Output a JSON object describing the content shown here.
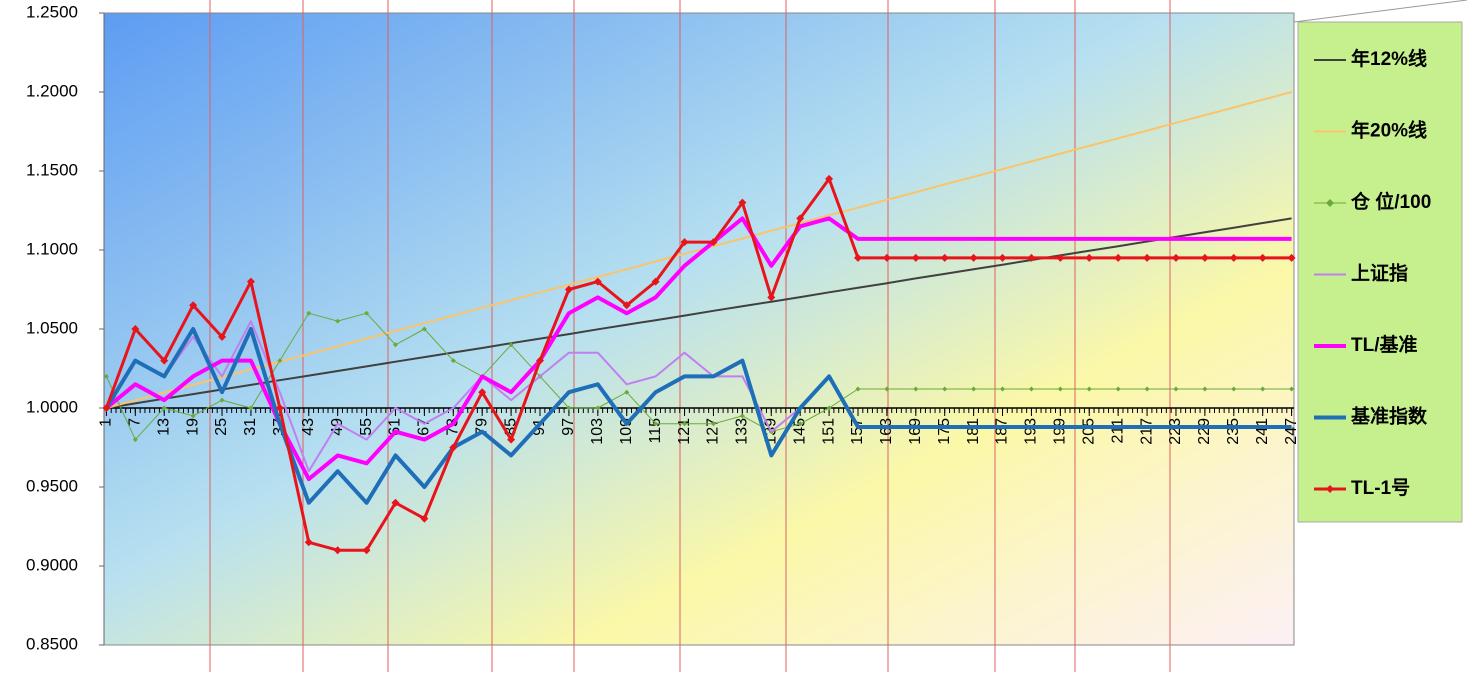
{
  "chart_data": {
    "type": "line",
    "x": [
      1,
      7,
      13,
      19,
      25,
      31,
      37,
      43,
      49,
      55,
      61,
      67,
      73,
      79,
      85,
      91,
      97,
      103,
      109,
      115,
      121,
      127,
      133,
      139,
      145,
      151,
      157,
      163,
      169,
      175,
      181,
      187,
      193,
      199,
      205,
      211,
      217,
      223,
      229,
      235,
      241,
      247
    ],
    "xlim": [
      1,
      247
    ],
    "xticks": [
      1,
      7,
      13,
      19,
      25,
      31,
      37,
      43,
      49,
      55,
      61,
      67,
      73,
      79,
      85,
      91,
      97,
      103,
      109,
      115,
      121,
      127,
      133,
      139,
      145,
      151,
      157,
      163,
      169,
      175,
      181,
      187,
      193,
      199,
      205,
      211,
      217,
      223,
      229,
      235,
      241,
      247
    ],
    "ylim": [
      0.85,
      1.25
    ],
    "yticks": [
      {
        "value": 0.85,
        "label": "0.8500"
      },
      {
        "value": 0.9,
        "label": "0.9000"
      },
      {
        "value": 0.95,
        "label": "0.9500"
      },
      {
        "value": 1.0,
        "label": "1.0000"
      },
      {
        "value": 1.05,
        "label": "1.0500"
      },
      {
        "value": 1.1,
        "label": "1.1000"
      },
      {
        "value": 1.15,
        "label": "1.1500"
      },
      {
        "value": 1.2,
        "label": "1.2000"
      },
      {
        "value": 1.25,
        "label": "1.2500"
      }
    ],
    "x_axis_at": 1.0,
    "grid": true,
    "legend": "right",
    "series": [
      {
        "name": "年12%线",
        "color": "#404040",
        "line_width": 2,
        "values": [
          1.0,
          1.0029,
          1.0059,
          1.0088,
          1.0117,
          1.0146,
          1.0176,
          1.0205,
          1.0234,
          1.0263,
          1.0293,
          1.0322,
          1.0351,
          1.038,
          1.041,
          1.0439,
          1.0468,
          1.0498,
          1.0527,
          1.0556,
          1.0585,
          1.0615,
          1.0644,
          1.0673,
          1.0702,
          1.0732,
          1.0761,
          1.079,
          1.082,
          1.0849,
          1.0878,
          1.0907,
          1.0937,
          1.0966,
          1.0995,
          1.1024,
          1.1054,
          1.1083,
          1.1112,
          1.1141,
          1.1171,
          1.12
        ]
      },
      {
        "name": "年20%线",
        "color": "#fac46a",
        "line_width": 2,
        "values": [
          1.0,
          1.0049,
          1.0098,
          1.0146,
          1.0195,
          1.0244,
          1.0293,
          1.0341,
          1.039,
          1.0439,
          1.0488,
          1.0537,
          1.0585,
          1.0634,
          1.0683,
          1.0732,
          1.078,
          1.0829,
          1.0878,
          1.0927,
          1.0976,
          1.1024,
          1.1073,
          1.1122,
          1.1171,
          1.122,
          1.1268,
          1.1317,
          1.1366,
          1.1415,
          1.1463,
          1.1512,
          1.1561,
          1.161,
          1.1659,
          1.1707,
          1.1756,
          1.1805,
          1.1854,
          1.1902,
          1.1951,
          1.2
        ]
      },
      {
        "name": "仓 位/100",
        "color": "#6aaa3a",
        "line_width": 1,
        "marker": "diamond",
        "values": [
          1.02,
          0.98,
          1.0,
          0.995,
          1.005,
          1.0,
          1.03,
          1.06,
          1.055,
          1.06,
          1.04,
          1.05,
          1.03,
          1.02,
          1.04,
          1.02,
          1.0,
          1.0,
          1.01,
          0.99,
          0.99,
          0.99,
          0.995,
          0.985,
          0.99,
          1.0,
          1.012,
          1.012,
          1.012,
          1.012,
          1.012,
          1.012,
          1.012,
          1.012,
          1.012,
          1.012,
          1.012,
          1.012,
          1.012,
          1.012,
          1.012,
          1.012
        ]
      },
      {
        "name": "上证指",
        "color": "#c080f0",
        "line_width": 2,
        "values": [
          1.0,
          1.03,
          1.02,
          1.045,
          1.02,
          1.055,
          1.01,
          0.96,
          0.99,
          0.98,
          1.0,
          0.99,
          1.0,
          1.02,
          1.005,
          1.02,
          1.035,
          1.035,
          1.015,
          1.02,
          1.035,
          1.02,
          1.02,
          0.985,
          1.0,
          1.02,
          0.988,
          0.988,
          0.988,
          0.988,
          0.988,
          0.988,
          0.988,
          0.988,
          0.988,
          0.988,
          0.988,
          0.988,
          0.988,
          0.988,
          0.988,
          0.988
        ]
      },
      {
        "name": "TL/基准",
        "color": "#ff00ff",
        "line_width": 4,
        "values": [
          1.0,
          1.015,
          1.005,
          1.02,
          1.03,
          1.03,
          0.99,
          0.955,
          0.97,
          0.965,
          0.985,
          0.98,
          0.99,
          1.02,
          1.01,
          1.03,
          1.06,
          1.07,
          1.06,
          1.07,
          1.09,
          1.105,
          1.12,
          1.09,
          1.115,
          1.12,
          1.107,
          1.107,
          1.107,
          1.107,
          1.107,
          1.107,
          1.107,
          1.107,
          1.107,
          1.107,
          1.107,
          1.107,
          1.107,
          1.107,
          1.107,
          1.107
        ]
      },
      {
        "name": "基准指数",
        "color": "#1f6fb8",
        "line_width": 4,
        "values": [
          1.0,
          1.03,
          1.02,
          1.05,
          1.01,
          1.05,
          0.99,
          0.94,
          0.96,
          0.94,
          0.97,
          0.95,
          0.975,
          0.985,
          0.97,
          0.99,
          1.01,
          1.015,
          0.99,
          1.01,
          1.02,
          1.02,
          1.03,
          0.97,
          1.0,
          1.02,
          0.988,
          0.988,
          0.988,
          0.988,
          0.988,
          0.988,
          0.988,
          0.988,
          0.988,
          0.988,
          0.988,
          0.988,
          0.988,
          0.988,
          0.988,
          0.988
        ]
      },
      {
        "name": "TL-1号",
        "color": "#e8141c",
        "line_width": 3,
        "marker": "diamond",
        "values": [
          1.0,
          1.05,
          1.03,
          1.065,
          1.045,
          1.08,
          1.0,
          0.915,
          0.91,
          0.91,
          0.94,
          0.93,
          0.975,
          1.01,
          0.98,
          1.03,
          1.075,
          1.08,
          1.065,
          1.08,
          1.105,
          1.105,
          1.13,
          1.07,
          1.12,
          1.145,
          1.095,
          1.095,
          1.095,
          1.095,
          1.095,
          1.095,
          1.095,
          1.095,
          1.095,
          1.095,
          1.095,
          1.095,
          1.095,
          1.095,
          1.095,
          1.095
        ]
      }
    ]
  }
}
